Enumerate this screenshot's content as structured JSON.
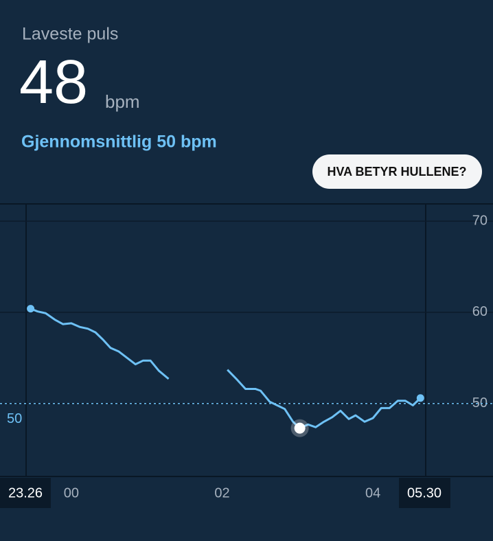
{
  "header": {
    "title": "Laveste puls",
    "value": "48",
    "unit": "bpm",
    "average": "Gjennomsnittlig 50 bpm"
  },
  "button": "HVA BETYR HULLENE?",
  "chart_data": {
    "type": "line",
    "x": [
      -0.54,
      -0.45,
      -0.34,
      -0.22,
      -0.11,
      0.0,
      0.11,
      0.22,
      0.32,
      0.42,
      0.52,
      0.63,
      0.74,
      0.85,
      0.95,
      1.05,
      1.16,
      1.29,
      1.68,
      2.07,
      2.2,
      2.31,
      2.44,
      2.51,
      2.63,
      2.73,
      2.83,
      2.94,
      3.03,
      3.14,
      3.24,
      3.35,
      3.46,
      3.57,
      3.68,
      3.77,
      3.89,
      4.0,
      4.11,
      4.22,
      4.33,
      4.43,
      4.53,
      4.63
    ],
    "series": [
      {
        "color": "#6ec1f5",
        "values": [
          60.4,
          60.1,
          59.9,
          59.2,
          58.7,
          58.8,
          58.4,
          58.2,
          57.8,
          57.0,
          56.1,
          55.7,
          55.0,
          54.3,
          54.7,
          54.7,
          53.6,
          52.7,
          null,
          53.7,
          52.6,
          51.6,
          51.6,
          51.4,
          50.2,
          49.8,
          49.4,
          48.0,
          47.3,
          47.7,
          47.4,
          48.0,
          48.5,
          49.2,
          48.3,
          48.7,
          48.0,
          48.4,
          49.5,
          49.5,
          50.3,
          50.3,
          49.8,
          50.6
        ]
      }
    ],
    "xlim": [
      -0.6,
      4.7
    ],
    "xticks": [
      {
        "value": 0,
        "label": "00"
      },
      {
        "value": 2,
        "label": "02"
      },
      {
        "value": 4,
        "label": "04"
      }
    ],
    "ylim": [
      42,
      72
    ],
    "yticks": [
      50,
      60,
      70
    ],
    "grid": true,
    "average": 50,
    "start_label": "23.26",
    "end_label": "05.30"
  }
}
